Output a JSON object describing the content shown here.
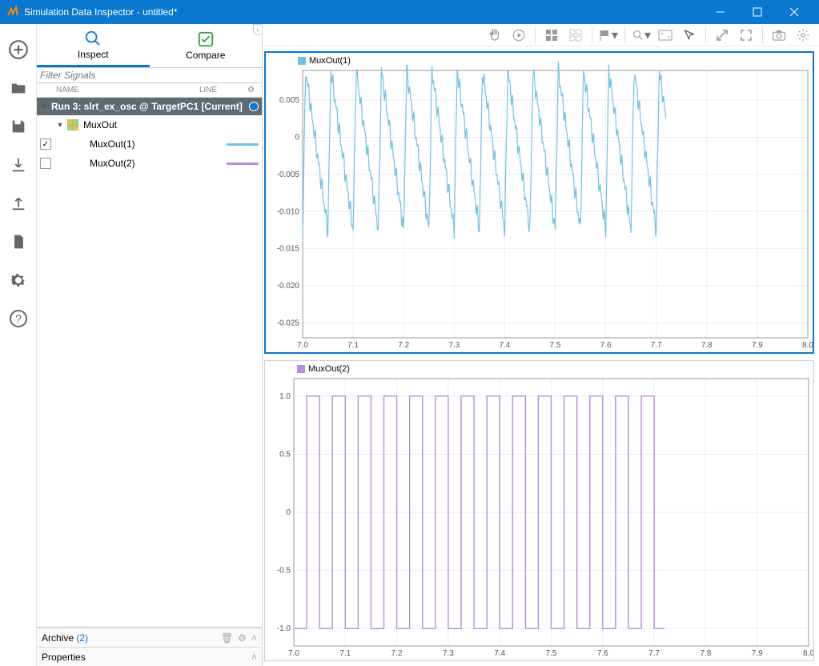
{
  "window": {
    "title": "Simulation Data Inspector - untitled*"
  },
  "tabs": {
    "inspect": "Inspect",
    "compare": "Compare"
  },
  "filter_placeholder": "Filter Signals",
  "columns": {
    "name": "NAME",
    "line": "LINE"
  },
  "run": {
    "label": "Run 3: slrt_ex_osc @ TargetPC1 [Current]"
  },
  "signals": {
    "group_label": "MuxOut",
    "s1": {
      "label": "MuxOut(1)",
      "checked": true,
      "color": "#6fc3e5"
    },
    "s2": {
      "label": "MuxOut(2)",
      "checked": false,
      "color": "#b48de0"
    }
  },
  "archive": {
    "label": "Archive",
    "count": "(2)"
  },
  "properties": {
    "label": "Properties"
  },
  "chart1": {
    "type": "line",
    "title": "MuxOut(1)",
    "xlim": [
      7.0,
      8.0
    ],
    "xticks": [
      7.0,
      7.1,
      7.2,
      7.3,
      7.4,
      7.5,
      7.6,
      7.7,
      7.8,
      7.9,
      8.0
    ],
    "ylim": [
      -0.027,
      0.009
    ],
    "yticks": [
      -0.025,
      -0.02,
      -0.015,
      -0.01,
      -0.005,
      0,
      0.005
    ],
    "ytick_labels": [
      "-0.025",
      "-0.020",
      "-0.015",
      "-0.010",
      "-0.005",
      "0",
      "0.005"
    ],
    "color": "#6fc3e5",
    "background": "#ffffff",
    "grid_color": "#eeeeee",
    "data_x_end": 7.72,
    "ymax": 0.009,
    "ymin": -0.0125,
    "pattern": "decay_saw",
    "period": 0.05,
    "noise": 0.0007
  },
  "chart2": {
    "type": "step",
    "title": "MuxOut(2)",
    "xlim": [
      7.0,
      8.0
    ],
    "xticks": [
      7.0,
      7.1,
      7.2,
      7.3,
      7.4,
      7.5,
      7.6,
      7.7,
      7.8,
      7.9,
      8.0
    ],
    "ylim": [
      -1.15,
      1.15
    ],
    "yticks": [
      -1.0,
      -0.5,
      0,
      0.5,
      1.0
    ],
    "ytick_labels": [
      "-1.0",
      "-0.5",
      "0",
      "0.5",
      "1.0"
    ],
    "color": "#b48de0",
    "background": "#ffffff",
    "grid_color": "#eeeeee",
    "data_x_end": 7.72,
    "high": 1.0,
    "low": -1.0,
    "period": 0.05
  },
  "colors": {
    "titlebar": "#0b78d0",
    "accent": "#0b78d0"
  }
}
